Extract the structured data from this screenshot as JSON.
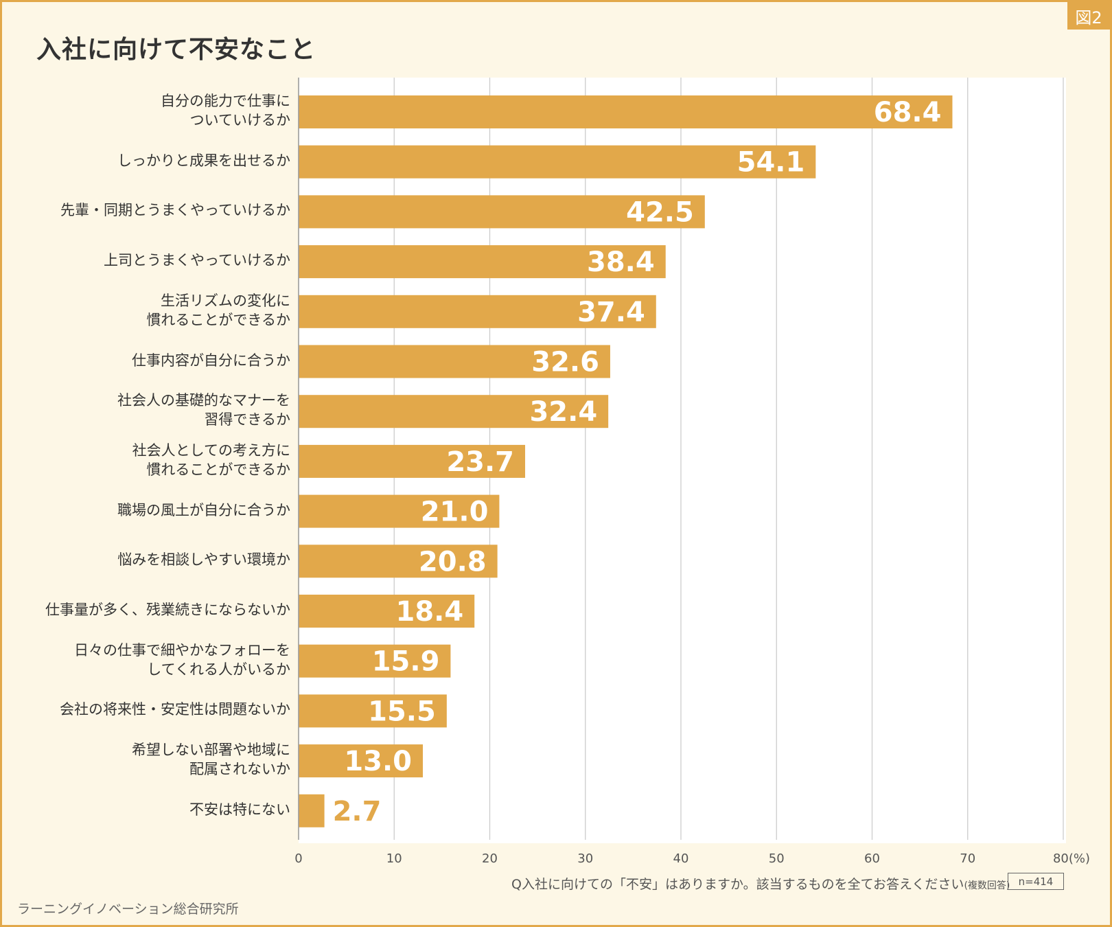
{
  "figure_badge": "図2",
  "colors": {
    "bar": "#e2a84a",
    "frame": "#e2a84a",
    "background": "#fdf7e6",
    "grid": "#cccccc"
  },
  "chart_data": {
    "type": "bar",
    "orientation": "horizontal",
    "title": "入社に向けて不安なこと",
    "categories": [
      "自分の能力で仕事に\nついていけるか",
      "しっかりと成果を出せるか",
      "先輩・同期とうまくやっていけるか",
      "上司とうまくやっていけるか",
      "生活リズムの変化に\n慣れることができるか",
      "仕事内容が自分に合うか",
      "社会人の基礎的なマナーを\n習得できるか",
      "社会人としての考え方に\n慣れることができるか",
      "職場の風土が自分に合うか",
      "悩みを相談しやすい環境か",
      "仕事量が多く、残業続きにならないか",
      "日々の仕事で細やかなフォローを\nしてくれる人がいるか",
      "会社の将来性・安定性は問題ないか",
      "希望しない部署や地域に\n配属されないか",
      "不安は特にない"
    ],
    "values": [
      68.4,
      54.1,
      42.5,
      38.4,
      37.4,
      32.6,
      32.4,
      23.7,
      21.0,
      20.8,
      18.4,
      15.9,
      15.5,
      13.0,
      2.7
    ],
    "value_labels": [
      "68.4",
      "54.1",
      "42.5",
      "38.4",
      "37.4",
      "32.6",
      "32.4",
      "23.7",
      "21.0",
      "20.8",
      "18.4",
      "15.9",
      "15.5",
      "13.0",
      "2.7"
    ],
    "xlim": [
      0,
      80
    ],
    "x_ticks": [
      "0",
      "10",
      "20",
      "30",
      "40",
      "50",
      "60",
      "70",
      "80(%)"
    ],
    "xlabel": "(%)",
    "grid": true
  },
  "question": "Q入社に向けての「不安」はありますか。該当するものを全てお答えください",
  "question_note": "(複数回答)",
  "sample_size": "n=414",
  "source": "ラーニングイノベーション総合研究所"
}
